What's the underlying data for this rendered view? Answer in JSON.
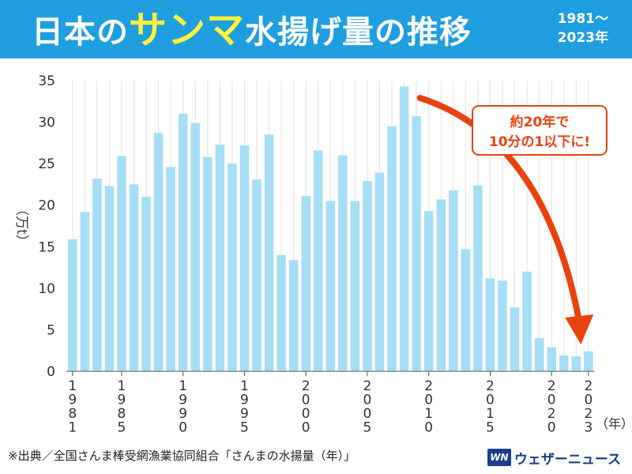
{
  "header": {
    "title_pre": "日本の",
    "title_highlight": "サンマ",
    "title_post": "水揚げ量の推移",
    "year_range_line1": "1981〜",
    "year_range_line2": "2023年"
  },
  "footer": {
    "source": "※出典／全国さんま棒受網漁業協同組合「さんまの水揚量（年）」",
    "brand_logo": "WN",
    "brand_name": "ウェザーニュース"
  },
  "colors": {
    "header_bg": "#1f9ee0",
    "title_highlight": "#fff23a",
    "bar": "#a6def5",
    "arrow": "#e8420f",
    "callout_border": "#e8420f",
    "callout_text": "#e8420f"
  },
  "chart_data": {
    "type": "bar",
    "ylabel": "（万t）",
    "xlabel": "（年）",
    "ylim": [
      0,
      35
    ],
    "yticks": [
      "0",
      "5",
      "10",
      "15",
      "20",
      "25",
      "30",
      "35"
    ],
    "grid": "vertical",
    "x": [
      1981,
      1982,
      1983,
      1984,
      1985,
      1986,
      1987,
      1988,
      1989,
      1990,
      1991,
      1992,
      1993,
      1994,
      1995,
      1996,
      1997,
      1998,
      1999,
      2000,
      2001,
      2002,
      2003,
      2004,
      2005,
      2006,
      2007,
      2008,
      2009,
      2010,
      2011,
      2012,
      2013,
      2014,
      2015,
      2016,
      2017,
      2018,
      2019,
      2020,
      2021,
      2022,
      2023
    ],
    "values": [
      15.9,
      19.2,
      23.2,
      22.3,
      25.9,
      22.5,
      21.0,
      28.7,
      24.6,
      31.0,
      29.9,
      25.8,
      27.3,
      25.0,
      27.2,
      23.1,
      28.5,
      14.0,
      13.4,
      21.1,
      26.6,
      20.5,
      26.0,
      20.5,
      22.9,
      23.9,
      29.5,
      34.3,
      30.7,
      19.3,
      20.7,
      21.8,
      14.7,
      22.4,
      11.2,
      10.9,
      7.7,
      12.0,
      4.0,
      2.9,
      1.9,
      1.8,
      2.4
    ],
    "xtick_labels": [
      {
        "year": 1981,
        "label": "1981"
      },
      {
        "year": 1985,
        "label": "1985"
      },
      {
        "year": 1990,
        "label": "1990"
      },
      {
        "year": 1995,
        "label": "1995"
      },
      {
        "year": 2000,
        "label": "2000"
      },
      {
        "year": 2005,
        "label": "2005"
      },
      {
        "year": 2010,
        "label": "2010"
      },
      {
        "year": 2015,
        "label": "2015"
      },
      {
        "year": 2020,
        "label": "2020"
      },
      {
        "year": 2023,
        "label": "2023"
      }
    ],
    "annotation": {
      "line1": "約20年で",
      "line2": "10分の1以下に!",
      "arrow_from_year": 2008,
      "arrow_to_year": 2022
    }
  }
}
